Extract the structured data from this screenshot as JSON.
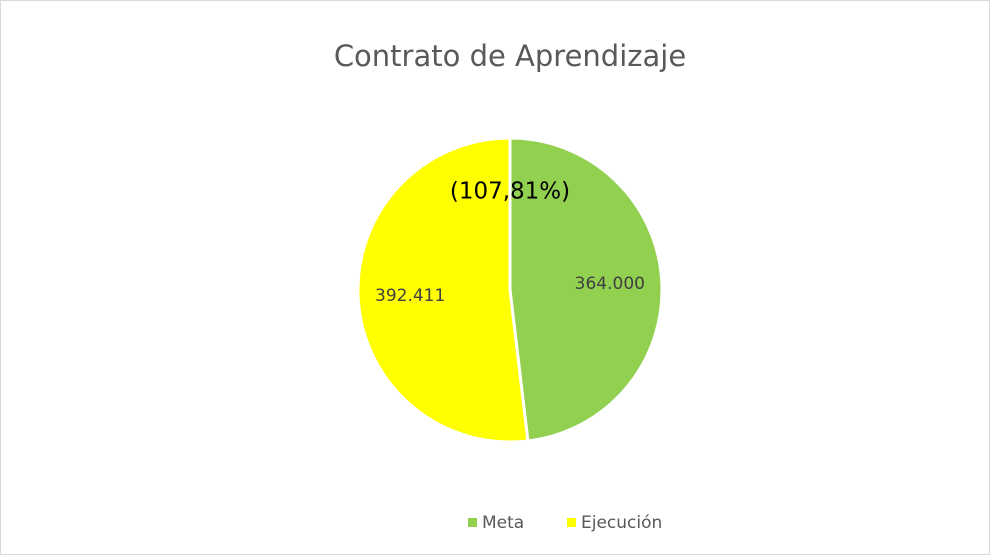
{
  "chart_data": {
    "type": "pie",
    "title": "Contrato de Aprendizaje",
    "categories": [
      "Meta",
      "Ejecución"
    ],
    "values": [
      364000,
      392411
    ],
    "value_labels": [
      "364.000",
      "392.411"
    ],
    "colors": [
      "#92d050",
      "#ffff00"
    ],
    "annotation": "(107,81%)",
    "legend": "bottom"
  }
}
